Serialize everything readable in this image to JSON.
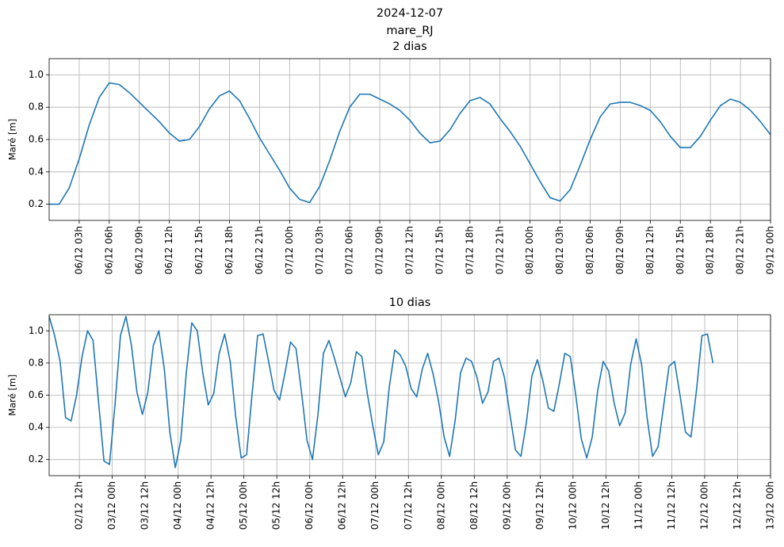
{
  "title_lines": [
    "2024-12-07",
    "mare_RJ"
  ],
  "chart_data": [
    {
      "type": "line",
      "title": "2 dias",
      "ylabel": "Maré [m]",
      "color": "#1f77b4",
      "grid": true,
      "x": [
        "06/12 00h",
        "06/12 01h",
        "06/12 02h",
        "06/12 03h",
        "06/12 04h",
        "06/12 05h",
        "06/12 06h",
        "06/12 07h",
        "06/12 08h",
        "06/12 09h",
        "06/12 10h",
        "06/12 11h",
        "06/12 12h",
        "06/12 13h",
        "06/12 14h",
        "06/12 15h",
        "06/12 16h",
        "06/12 17h",
        "06/12 18h",
        "06/12 19h",
        "06/12 20h",
        "06/12 21h",
        "06/12 22h",
        "06/12 23h",
        "07/12 00h",
        "07/12 01h",
        "07/12 02h",
        "07/12 03h",
        "07/12 04h",
        "07/12 05h",
        "07/12 06h",
        "07/12 07h",
        "07/12 08h",
        "07/12 09h",
        "07/12 10h",
        "07/12 11h",
        "07/12 12h",
        "07/12 13h",
        "07/12 14h",
        "07/12 15h",
        "07/12 16h",
        "07/12 17h",
        "07/12 18h",
        "07/12 19h",
        "07/12 20h",
        "07/12 21h",
        "07/12 22h",
        "07/12 23h",
        "08/12 00h",
        "08/12 01h",
        "08/12 02h",
        "08/12 03h",
        "08/12 04h",
        "08/12 05h",
        "08/12 06h",
        "08/12 07h",
        "08/12 08h",
        "08/12 09h",
        "08/12 10h",
        "08/12 11h",
        "08/12 12h",
        "08/12 13h",
        "08/12 14h",
        "08/12 15h",
        "08/12 16h",
        "08/12 17h",
        "08/12 18h",
        "08/12 19h",
        "08/12 20h",
        "08/12 21h",
        "08/12 22h",
        "08/12 23h",
        "09/12 00h"
      ],
      "values": [
        0.2,
        0.2,
        0.3,
        0.48,
        0.69,
        0.86,
        0.95,
        0.94,
        0.89,
        0.83,
        0.77,
        0.71,
        0.64,
        0.59,
        0.6,
        0.68,
        0.79,
        0.87,
        0.9,
        0.84,
        0.73,
        0.61,
        0.51,
        0.41,
        0.3,
        0.23,
        0.21,
        0.31,
        0.47,
        0.65,
        0.8,
        0.88,
        0.88,
        0.85,
        0.82,
        0.78,
        0.72,
        0.64,
        0.58,
        0.59,
        0.66,
        0.76,
        0.84,
        0.86,
        0.82,
        0.73,
        0.65,
        0.56,
        0.45,
        0.34,
        0.24,
        0.22,
        0.29,
        0.44,
        0.6,
        0.74,
        0.82,
        0.83,
        0.83,
        0.81,
        0.78,
        0.71,
        0.62,
        0.55,
        0.55,
        0.62,
        0.72,
        0.81,
        0.85,
        0.83,
        0.78,
        0.71,
        0.63
      ],
      "xlim": [
        "06/12 00h",
        "09/12 00h"
      ],
      "xticks": [
        "06/12 03h",
        "06/12 06h",
        "06/12 09h",
        "06/12 12h",
        "06/12 15h",
        "06/12 18h",
        "06/12 21h",
        "07/12 00h",
        "07/12 03h",
        "07/12 06h",
        "07/12 09h",
        "07/12 12h",
        "07/12 15h",
        "07/12 18h",
        "07/12 21h",
        "08/12 00h",
        "08/12 03h",
        "08/12 06h",
        "08/12 09h",
        "08/12 12h",
        "08/12 15h",
        "08/12 18h",
        "08/12 21h",
        "09/12 00h"
      ],
      "ylim": [
        0.1,
        1.1
      ],
      "yticks": [
        0.2,
        0.4,
        0.6,
        0.8,
        {
          "value": 1,
          "label": "1.0"
        }
      ]
    },
    {
      "type": "line",
      "title": "10 dias",
      "ylabel": "Maré [m]",
      "color": "#1f77b4",
      "grid": true,
      "x": [
        "02/12 01h",
        "02/12 03h",
        "02/12 05h",
        "02/12 07h",
        "02/12 09h",
        "02/12 11h",
        "02/12 13h",
        "02/12 15h",
        "02/12 17h",
        "02/12 19h",
        "02/12 21h",
        "02/12 23h",
        "03/12 01h",
        "03/12 03h",
        "03/12 05h",
        "03/12 07h",
        "03/12 09h",
        "03/12 11h",
        "03/12 13h",
        "03/12 15h",
        "03/12 17h",
        "03/12 19h",
        "03/12 21h",
        "03/12 23h",
        "04/12 01h",
        "04/12 03h",
        "04/12 05h",
        "04/12 07h",
        "04/12 09h",
        "04/12 11h",
        "04/12 13h",
        "04/12 15h",
        "04/12 17h",
        "04/12 19h",
        "04/12 21h",
        "04/12 23h",
        "05/12 01h",
        "05/12 03h",
        "05/12 05h",
        "05/12 07h",
        "05/12 09h",
        "05/12 11h",
        "05/12 13h",
        "05/12 15h",
        "05/12 17h",
        "05/12 19h",
        "05/12 21h",
        "05/12 23h",
        "06/12 01h",
        "06/12 03h",
        "06/12 05h",
        "06/12 07h",
        "06/12 09h",
        "06/12 11h",
        "06/12 13h",
        "06/12 15h",
        "06/12 17h",
        "06/12 19h",
        "06/12 21h",
        "06/12 23h",
        "07/12 01h",
        "07/12 03h",
        "07/12 05h",
        "07/12 07h",
        "07/12 09h",
        "07/12 11h",
        "07/12 13h",
        "07/12 15h",
        "07/12 17h",
        "07/12 19h",
        "07/12 21h",
        "07/12 23h",
        "08/12 01h",
        "08/12 03h",
        "08/12 05h",
        "08/12 07h",
        "08/12 09h",
        "08/12 11h",
        "08/12 13h",
        "08/12 15h",
        "08/12 17h",
        "08/12 19h",
        "08/12 21h",
        "08/12 23h",
        "09/12 01h",
        "09/12 03h",
        "09/12 05h",
        "09/12 07h",
        "09/12 09h",
        "09/12 11h",
        "09/12 13h",
        "09/12 15h",
        "09/12 17h",
        "09/12 19h",
        "09/12 21h",
        "09/12 23h",
        "10/12 01h",
        "10/12 03h",
        "10/12 05h",
        "10/12 07h",
        "10/12 09h",
        "10/12 11h",
        "10/12 13h",
        "10/12 15h",
        "10/12 17h",
        "10/12 19h",
        "10/12 21h",
        "10/12 23h",
        "11/12 01h",
        "11/12 03h",
        "11/12 05h",
        "11/12 07h",
        "11/12 09h",
        "11/12 11h",
        "11/12 13h",
        "11/12 15h",
        "11/12 17h",
        "11/12 19h",
        "11/12 21h",
        "11/12 23h",
        "12/12 01h",
        "12/12 03h"
      ],
      "values": [
        1.09,
        0.97,
        0.81,
        0.46,
        0.44,
        0.6,
        0.84,
        1.0,
        0.94,
        0.56,
        0.19,
        0.17,
        0.54,
        0.97,
        1.09,
        0.91,
        0.62,
        0.48,
        0.62,
        0.91,
        1.0,
        0.76,
        0.37,
        0.15,
        0.32,
        0.74,
        1.05,
        1.0,
        0.74,
        0.54,
        0.61,
        0.86,
        0.98,
        0.81,
        0.47,
        0.21,
        0.23,
        0.61,
        0.97,
        0.98,
        0.81,
        0.63,
        0.57,
        0.74,
        0.93,
        0.89,
        0.62,
        0.32,
        0.2,
        0.48,
        0.86,
        0.94,
        0.83,
        0.71,
        0.59,
        0.68,
        0.87,
        0.84,
        0.61,
        0.41,
        0.23,
        0.31,
        0.65,
        0.88,
        0.85,
        0.78,
        0.64,
        0.59,
        0.76,
        0.86,
        0.73,
        0.56,
        0.34,
        0.22,
        0.44,
        0.74,
        0.83,
        0.81,
        0.71,
        0.55,
        0.62,
        0.81,
        0.83,
        0.71,
        0.48,
        0.26,
        0.22,
        0.43,
        0.72,
        0.82,
        0.69,
        0.52,
        0.5,
        0.67,
        0.86,
        0.84,
        0.6,
        0.33,
        0.21,
        0.34,
        0.63,
        0.81,
        0.75,
        0.55,
        0.41,
        0.49,
        0.79,
        0.95,
        0.79,
        0.46,
        0.22,
        0.28,
        0.53,
        0.78,
        0.81,
        0.6,
        0.37,
        0.34,
        0.63,
        0.97,
        0.98,
        0.8
      ],
      "xlim": [
        "02/12 01h",
        "13/12 00h"
      ],
      "xticks": [
        "02/12 12h",
        "03/12 00h",
        "03/12 12h",
        "04/12 00h",
        "04/12 12h",
        "05/12 00h",
        "05/12 12h",
        "06/12 00h",
        "06/12 12h",
        "07/12 00h",
        "07/12 12h",
        "08/12 00h",
        "08/12 12h",
        "09/12 00h",
        "09/12 12h",
        "10/12 00h",
        "10/12 12h",
        "11/12 00h",
        "11/12 12h",
        "12/12 00h",
        "12/12 12h",
        "13/12 00h"
      ],
      "ylim": [
        0.1,
        1.1
      ],
      "yticks": [
        0.2,
        0.4,
        0.6,
        0.8,
        {
          "value": 1,
          "label": "1.0"
        }
      ]
    }
  ]
}
